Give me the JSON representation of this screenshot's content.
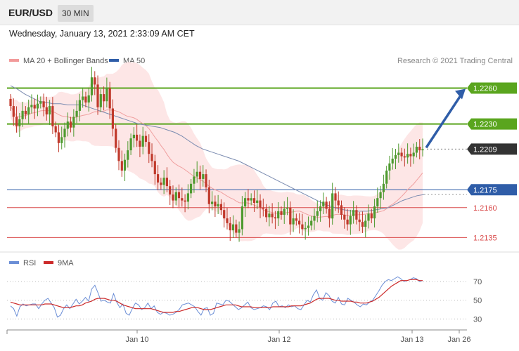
{
  "header": {
    "symbol": "EUR/USD",
    "timeframe": "30 MIN",
    "datetime": "Wednesday, January 13, 2021 2:33:09 AM CET"
  },
  "legend": {
    "ma20_bb": "MA 20 + Bollinger Bands",
    "ma50": "MA 50",
    "copyright": "Research © 2021 Trading Central"
  },
  "rsi_legend": {
    "rsi": "RSI",
    "ma9": "9MA"
  },
  "colors": {
    "green": "#5aa51e",
    "blue": "#2f5da8",
    "red": "#d94a4a",
    "band": "#fde3e3",
    "candle_up": "#4e9a2f",
    "candle_down": "#c0392b",
    "rsi_line": "#6b8ed6",
    "rsi_ma": "#cc2a2a"
  },
  "chart_data": [
    {
      "type": "candlestick",
      "x_ticks": [
        "Jan 10",
        "Jan 12",
        "Jan 13",
        "Jan 26"
      ],
      "ylim": [
        1.2127,
        1.2275
      ],
      "levels": [
        {
          "label": "1.2260",
          "value": 1.226,
          "kind": "resistance",
          "color": "#5aa51e"
        },
        {
          "label": "1.2230",
          "value": 1.223,
          "kind": "pivot",
          "color": "#5aa51e"
        },
        {
          "label": "1.2209",
          "value": 1.2209,
          "kind": "last",
          "color": "#333333"
        },
        {
          "label": "1.2175",
          "value": 1.2175,
          "kind": "support",
          "color": "#2f5da8"
        },
        {
          "label": "1.2160",
          "value": 1.216,
          "kind": "support",
          "color": "#d94a4a"
        },
        {
          "label": "1.2135",
          "value": 1.2135,
          "kind": "support",
          "color": "#d94a4a"
        }
      ],
      "close_series": [
        1.2245,
        1.2236,
        1.2228,
        1.2234,
        1.2241,
        1.2238,
        1.2244,
        1.2246,
        1.2243,
        1.2247,
        1.2249,
        1.2244,
        1.2238,
        1.2245,
        1.2228,
        1.2223,
        1.2214,
        1.2219,
        1.2226,
        1.2232,
        1.2227,
        1.2236,
        1.2241,
        1.225,
        1.2253,
        1.2248,
        1.2254,
        1.2269,
        1.2263,
        1.2244,
        1.2255,
        1.2249,
        1.226,
        1.2243,
        1.2226,
        1.221,
        1.2199,
        1.2191,
        1.22,
        1.2208,
        1.2218,
        1.2221,
        1.2216,
        1.2211,
        1.222,
        1.2215,
        1.2205,
        1.2199,
        1.2188,
        1.2181,
        1.2179,
        1.2185,
        1.2178,
        1.2171,
        1.2166,
        1.2173,
        1.2168,
        1.2166,
        1.2165,
        1.2172,
        1.218,
        1.2186,
        1.219,
        1.2184,
        1.2188,
        1.2177,
        1.2163,
        1.2165,
        1.2161,
        1.2163,
        1.2158,
        1.2151,
        1.2147,
        1.2141,
        1.2146,
        1.2139,
        1.2142,
        1.2161,
        1.2168,
        1.2166,
        1.2168,
        1.2164,
        1.2166,
        1.216,
        1.2159,
        1.2152,
        1.2155,
        1.2152,
        1.2151,
        1.2157,
        1.2154,
        1.2159,
        1.216,
        1.2146,
        1.2151,
        1.2149,
        1.2146,
        1.2142,
        1.2143,
        1.2145,
        1.2149,
        1.2153,
        1.2157,
        1.2161,
        1.2165,
        1.2159,
        1.2151,
        1.2172,
        1.2166,
        1.2162,
        1.2154,
        1.215,
        1.2146,
        1.2153,
        1.2158,
        1.215,
        1.2148,
        1.2144,
        1.2149,
        1.2155,
        1.2151,
        1.2161,
        1.2168,
        1.2173,
        1.218,
        1.2191,
        1.2197,
        1.2201,
        1.2204,
        1.2206,
        1.2203,
        1.2202,
        1.2205,
        1.2203,
        1.2206,
        1.2211,
        1.2208,
        1.2209
      ],
      "ma50": [
        1.2262,
        1.2259,
        1.2255,
        1.2252,
        1.2249,
        1.2248,
        1.2247,
        1.2247,
        1.2246,
        1.2246,
        1.2246,
        1.2244,
        1.2242,
        1.224,
        1.2238,
        1.2236,
        1.2234,
        1.2232,
        1.223,
        1.2229,
        1.2228,
        1.2227,
        1.2225,
        1.2223,
        1.222,
        1.2216,
        1.2212,
        1.2209,
        1.2207,
        1.2205,
        1.2203,
        1.2201,
        1.2199,
        1.2196,
        1.2193,
        1.219,
        1.2187,
        1.2184,
        1.2181,
        1.2178,
        1.2175,
        1.2172,
        1.2169,
        1.2166,
        1.2163,
        1.2161,
        1.2159,
        1.2158,
        1.2157,
        1.2157,
        1.2157,
        1.2158,
        1.2159,
        1.216,
        1.2163,
        1.2166,
        1.2168,
        1.217,
        1.2171
      ],
      "marker_y": "1.2209"
    },
    {
      "type": "line",
      "name": "RSI panel",
      "series": [
        {
          "name": "RSI"
        },
        {
          "name": "9MA"
        }
      ],
      "y_ticks": [
        "70",
        "50",
        "30"
      ],
      "ylim": [
        22,
        82
      ],
      "rsi": [
        44,
        41,
        33,
        43,
        46,
        44,
        45,
        46,
        46,
        41,
        46,
        50,
        52,
        47,
        42,
        32,
        34,
        41,
        45,
        41,
        46,
        51,
        46,
        49,
        53,
        49,
        62,
        66,
        58,
        49,
        50,
        48,
        47,
        57,
        48,
        42,
        46,
        36,
        34,
        41,
        47,
        45,
        40,
        42,
        47,
        41,
        44,
        37,
        35,
        37,
        36,
        34,
        35,
        37,
        40,
        45,
        46,
        47,
        45,
        43,
        38,
        34,
        41,
        42,
        34,
        36,
        47,
        46,
        45,
        50,
        49,
        46,
        43,
        40,
        42,
        45,
        48,
        42,
        40,
        41,
        42,
        44,
        43,
        40,
        47,
        49,
        43,
        44,
        42,
        45,
        43,
        44,
        41,
        40,
        45,
        50,
        48,
        56,
        61,
        52,
        50,
        58,
        55,
        49,
        47,
        53,
        46,
        45,
        52,
        50,
        48,
        45,
        43,
        46,
        45,
        48,
        50,
        55,
        60,
        66,
        70,
        72,
        71,
        73,
        75,
        73,
        70,
        71,
        72,
        74,
        73,
        70,
        71
      ],
      "ma9": [
        48,
        47,
        46,
        45,
        45,
        45,
        45,
        45,
        45,
        45,
        45,
        46,
        46,
        46,
        45,
        44,
        43,
        42,
        42,
        42,
        43,
        44,
        44,
        45,
        47,
        48,
        49,
        51,
        52,
        52,
        52,
        51,
        50,
        50,
        49,
        47,
        45,
        44,
        43,
        42,
        41,
        41,
        41,
        41,
        41,
        41,
        40,
        39,
        38,
        37,
        37,
        37,
        37,
        38,
        38,
        39,
        40,
        41,
        42,
        42,
        42,
        41,
        40,
        40,
        40,
        41,
        42,
        43,
        44,
        45,
        45,
        45,
        45,
        44,
        43,
        43,
        43,
        43,
        42,
        42,
        42,
        42,
        42,
        42,
        43,
        43,
        43,
        43,
        43,
        43,
        44,
        44,
        44,
        44,
        45,
        46,
        47,
        49,
        51,
        52,
        52,
        52,
        52,
        51,
        50,
        50,
        49,
        49,
        49,
        49,
        48,
        48,
        47,
        47,
        47,
        48,
        49,
        51,
        53,
        56,
        59,
        62,
        65,
        67,
        69,
        71,
        71,
        71,
        72,
        72,
        72,
        71,
        71
      ]
    }
  ]
}
